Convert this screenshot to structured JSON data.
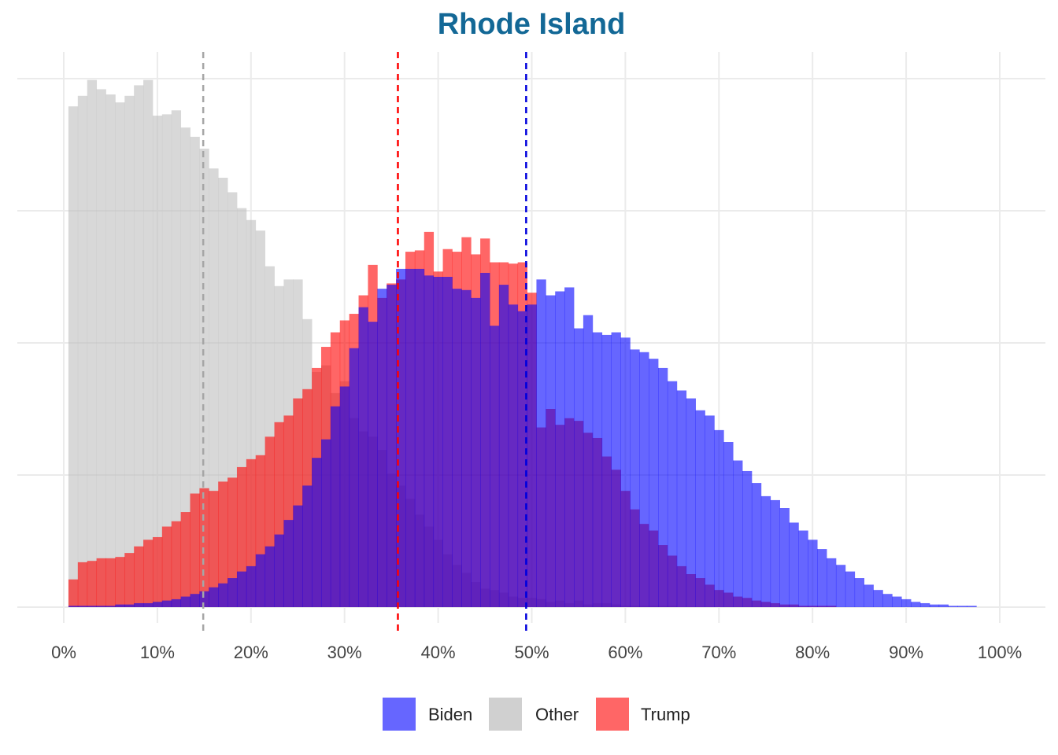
{
  "chart_data": {
    "type": "histogram",
    "title": "Rhode Island",
    "xlabel": "",
    "ylabel": "",
    "xlim": [
      0,
      100
    ],
    "x_ticks": [
      "0%",
      "10%",
      "20%",
      "30%",
      "40%",
      "50%",
      "60%",
      "70%",
      "80%",
      "90%",
      "100%"
    ],
    "x_tick_values": [
      0,
      10,
      20,
      30,
      40,
      50,
      60,
      70,
      80,
      90,
      100
    ],
    "ylim": [
      0,
      4
    ],
    "y_gridlines": [
      0,
      1,
      2,
      3,
      4
    ],
    "y_tick_labels_shown": false,
    "grid": true,
    "bin_start": 0.5,
    "bin_width": 1,
    "legend_position": "bottom",
    "series": [
      {
        "name": "Other",
        "color": "#bebebe",
        "values": [
          3.79,
          3.87,
          3.99,
          3.92,
          3.88,
          3.82,
          3.87,
          3.95,
          3.99,
          3.72,
          3.73,
          3.76,
          3.63,
          3.56,
          3.47,
          3.32,
          3.25,
          3.14,
          3.02,
          2.93,
          2.85,
          2.58,
          2.43,
          2.48,
          2.48,
          2.18,
          1.78,
          1.83,
          1.62,
          1.71,
          1.43,
          1.33,
          1.29,
          1.19,
          1.01,
          0.92,
          0.82,
          0.7,
          0.61,
          0.51,
          0.4,
          0.32,
          0.26,
          0.19,
          0.14,
          0.13,
          0.11,
          0.08,
          0.07,
          0.07,
          0.06,
          0.04,
          0.05,
          0.03,
          0.05,
          0.02,
          0.03,
          0.03,
          0.02,
          0.01,
          0.01,
          0.01,
          0.01,
          0.01,
          0.01
        ]
      },
      {
        "name": "Trump",
        "color": "#ff0000",
        "values": [
          0.21,
          0.34,
          0.35,
          0.37,
          0.37,
          0.38,
          0.41,
          0.46,
          0.51,
          0.53,
          0.61,
          0.65,
          0.72,
          0.86,
          0.9,
          0.88,
          0.95,
          0.98,
          1.06,
          1.12,
          1.15,
          1.29,
          1.4,
          1.45,
          1.58,
          1.65,
          1.81,
          1.97,
          2.08,
          2.17,
          2.22,
          2.36,
          2.59,
          2.34,
          2.45,
          2.48,
          2.69,
          2.7,
          2.84,
          2.54,
          2.71,
          2.69,
          2.8,
          2.67,
          2.79,
          2.61,
          2.61,
          2.6,
          2.61,
          2.38,
          1.36,
          1.5,
          1.38,
          1.43,
          1.41,
          1.32,
          1.28,
          1.14,
          1.04,
          0.88,
          0.74,
          0.63,
          0.58,
          0.47,
          0.39,
          0.31,
          0.25,
          0.22,
          0.17,
          0.13,
          0.11,
          0.08,
          0.07,
          0.05,
          0.04,
          0.03,
          0.02,
          0.02,
          0.01,
          0.01,
          0.01,
          0.01
        ]
      },
      {
        "name": "Biden",
        "color": "#0000ff",
        "values": [
          0.01,
          0.01,
          0.01,
          0.01,
          0.01,
          0.02,
          0.02,
          0.03,
          0.03,
          0.04,
          0.05,
          0.06,
          0.08,
          0.1,
          0.12,
          0.15,
          0.18,
          0.22,
          0.27,
          0.31,
          0.4,
          0.46,
          0.55,
          0.66,
          0.77,
          0.92,
          1.13,
          1.27,
          1.52,
          1.67,
          1.96,
          2.27,
          2.16,
          2.41,
          2.44,
          2.56,
          2.56,
          2.56,
          2.51,
          2.5,
          2.5,
          2.41,
          2.4,
          2.34,
          2.53,
          2.13,
          2.44,
          2.29,
          2.24,
          2.29,
          2.48,
          2.36,
          2.39,
          2.42,
          2.11,
          2.21,
          2.08,
          2.06,
          2.08,
          2.04,
          1.95,
          1.93,
          1.88,
          1.81,
          1.71,
          1.64,
          1.58,
          1.49,
          1.45,
          1.34,
          1.25,
          1.11,
          1.03,
          0.94,
          0.84,
          0.81,
          0.75,
          0.64,
          0.58,
          0.51,
          0.44,
          0.37,
          0.32,
          0.27,
          0.22,
          0.17,
          0.13,
          0.1,
          0.08,
          0.06,
          0.04,
          0.03,
          0.02,
          0.02,
          0.01,
          0.01,
          0.01
        ]
      }
    ],
    "reference_lines": [
      {
        "series": "Other",
        "x": 14.9,
        "color": "#a6a6a6",
        "style": "dashed"
      },
      {
        "series": "Trump",
        "x": 35.7,
        "color": "#ff0000",
        "style": "dashed"
      },
      {
        "series": "Biden",
        "x": 49.4,
        "color": "#0000dd",
        "style": "dashed"
      }
    ],
    "legend": [
      {
        "label": "Biden",
        "color": "#6666ff"
      },
      {
        "label": "Other",
        "color": "#d0d0d0"
      },
      {
        "label": "Trump",
        "color": "#ff6666"
      }
    ]
  }
}
